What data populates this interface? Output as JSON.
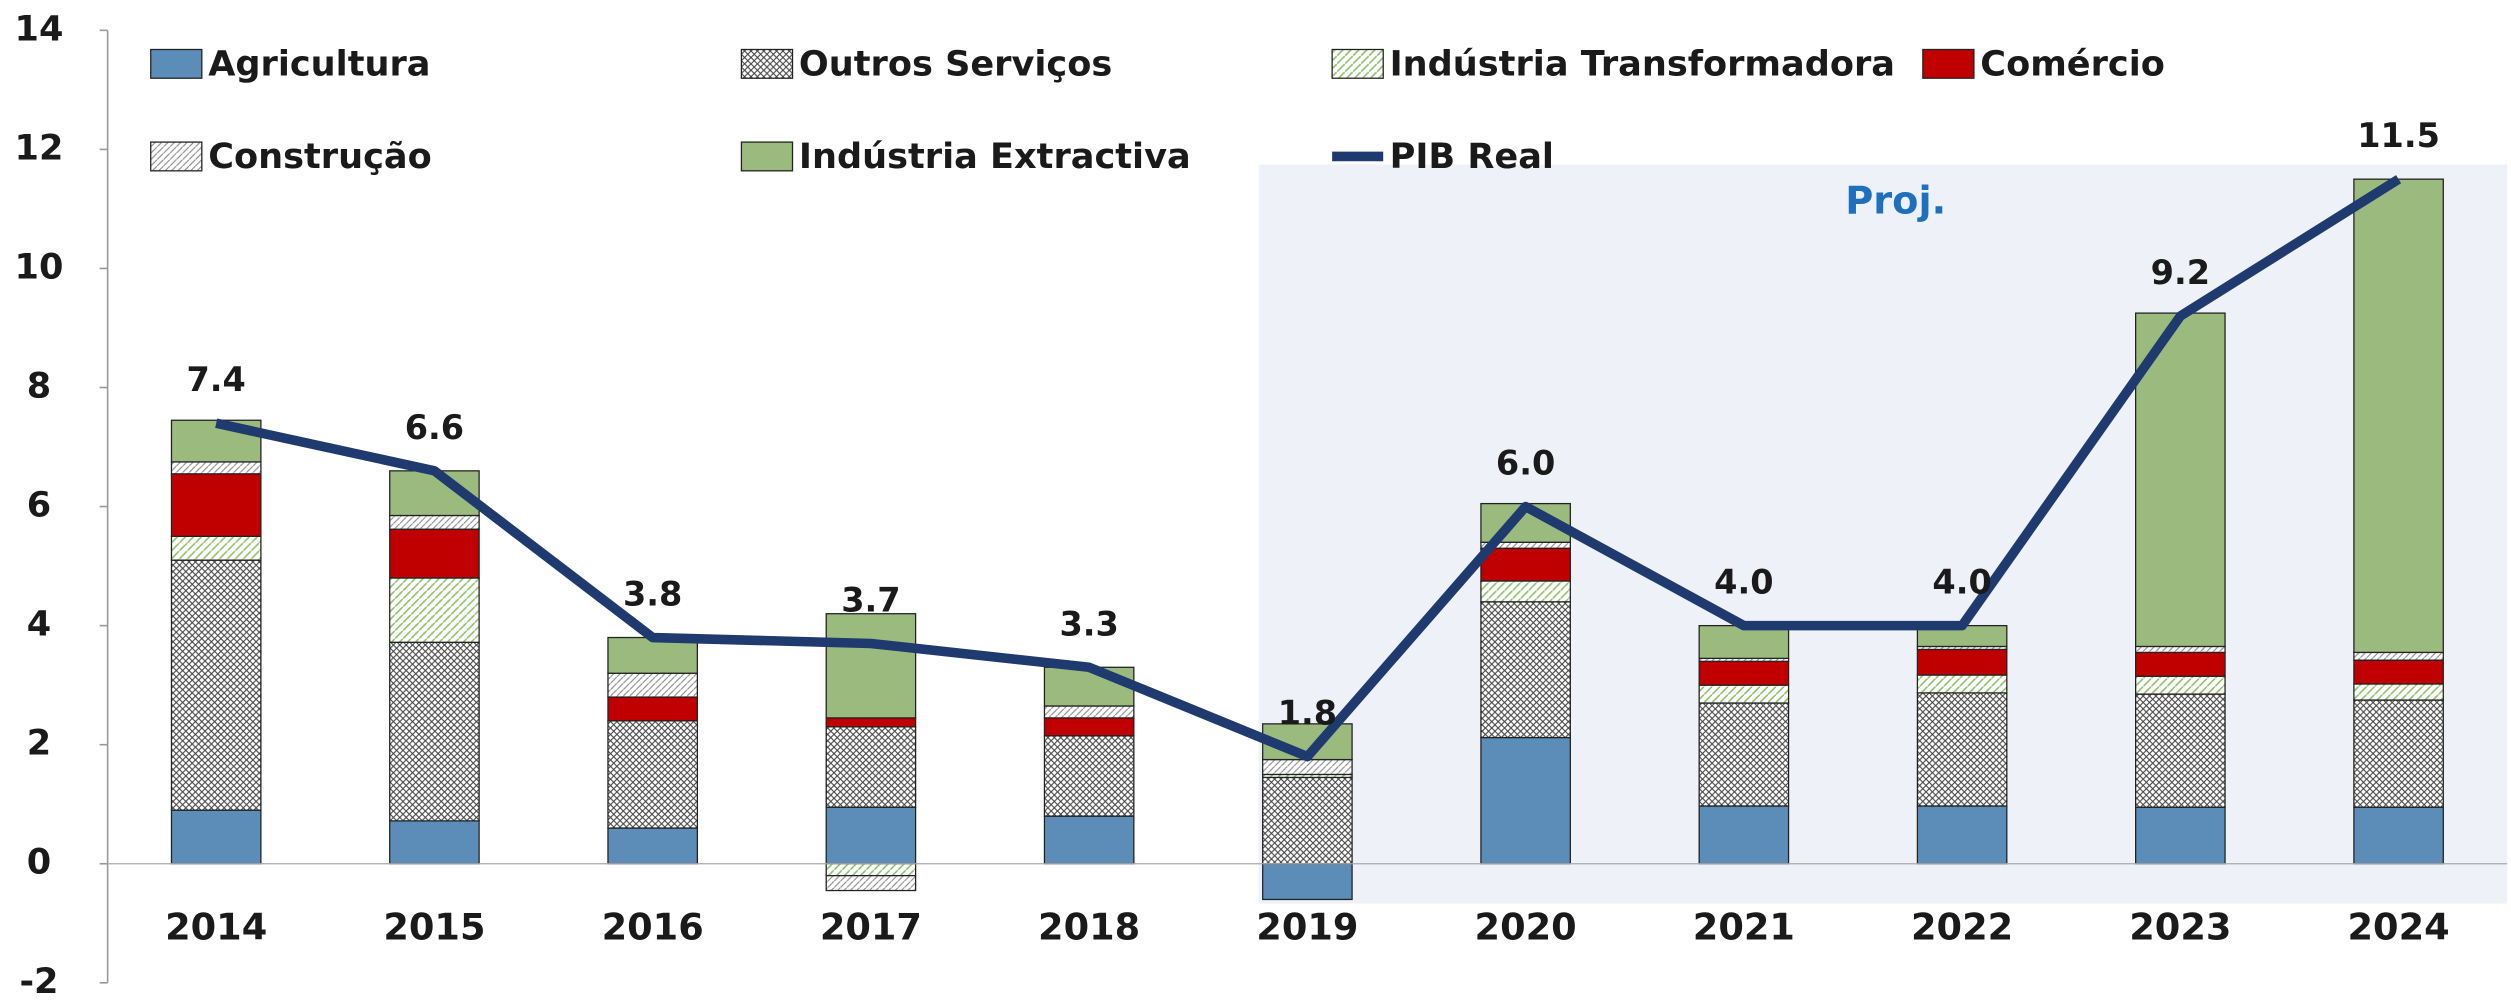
{
  "chart_data": {
    "type": "bar",
    "annotation": "Proj.",
    "categories": [
      "2014",
      "2015",
      "2016",
      "2017",
      "2018",
      "2019",
      "2020",
      "2021",
      "2022",
      "2023",
      "2024"
    ],
    "ylim": [
      -2,
      14
    ],
    "yticks": [
      -2,
      0,
      2,
      4,
      6,
      8,
      10,
      12,
      14
    ],
    "series": [
      {
        "name": "Agricultura",
        "color": "#5b8db8",
        "values": [
          0.9,
          0.72,
          0.6,
          0.95,
          0.8,
          -0.6,
          2.12,
          0.97,
          0.97,
          0.95,
          0.95
        ]
      },
      {
        "name": "Outros Serviços",
        "color": "#444444",
        "values": [
          4.2,
          3.0,
          1.8,
          1.35,
          1.35,
          1.45,
          2.28,
          1.73,
          1.9,
          1.9,
          1.8
        ]
      },
      {
        "name": "Indústria Transformadora",
        "color": "#8fbf6a",
        "values": [
          0.4,
          1.08,
          0,
          -0.2,
          0,
          0.05,
          0.35,
          0.3,
          0.3,
          0.3,
          0.27
        ]
      },
      {
        "name": "Comércio",
        "color": "#c00000",
        "values": [
          1.05,
          0.82,
          0.4,
          0.15,
          0.3,
          0,
          0.55,
          0.4,
          0.43,
          0.4,
          0.4
        ]
      },
      {
        "name": "Construção",
        "color": "#888888",
        "values": [
          0.2,
          0.23,
          0.4,
          -0.25,
          0.2,
          0.25,
          0.1,
          0.05,
          0.05,
          0.1,
          0.13
        ]
      },
      {
        "name": "Indústria Extractiva",
        "color": "#9bbb7e",
        "values": [
          0.7,
          0.75,
          0.6,
          1.75,
          0.65,
          0.6,
          0.65,
          0.55,
          0.35,
          5.6,
          7.95
        ]
      },
      {
        "name": "PIB Real",
        "type": "line",
        "color": "#1f3a6e",
        "values": [
          7.4,
          6.6,
          3.8,
          3.7,
          3.3,
          1.8,
          6.0,
          4.0,
          4.0,
          9.2,
          11.5
        ],
        "value_labels": [
          "7.4",
          "6.6",
          "3.8",
          "3.7",
          "3.3",
          "1.8",
          "6.0",
          "4.0",
          "4.0",
          "9.2",
          "11.5"
        ]
      }
    ]
  }
}
